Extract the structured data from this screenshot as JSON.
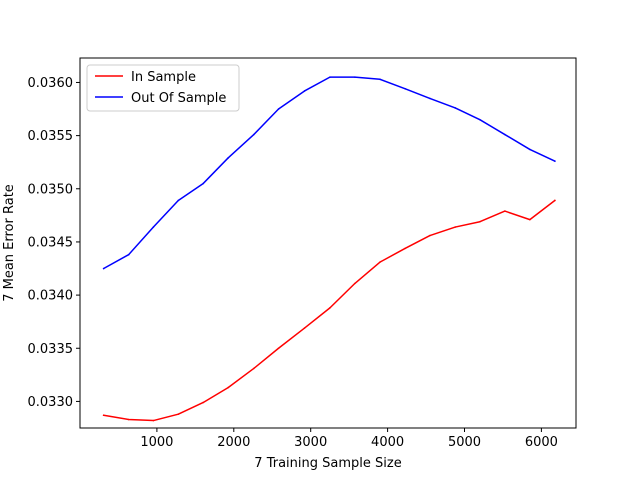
{
  "chart_data": {
    "type": "line",
    "xlabel": "7 Training Sample Size",
    "ylabel": "7 Mean Error Rate",
    "xlim": [
      0,
      6450
    ],
    "ylim": [
      0.03275,
      0.03623
    ],
    "xticks": [
      1000,
      2000,
      3000,
      4000,
      5000,
      6000
    ],
    "yticks": [
      0.033,
      0.0335,
      0.034,
      0.0345,
      0.035,
      0.0355,
      0.036
    ],
    "xtick_labels": [
      "1000",
      "2000",
      "3000",
      "4000",
      "5000",
      "6000"
    ],
    "ytick_labels": [
      "0.0330",
      "0.0335",
      "0.0340",
      "0.0345",
      "0.0350",
      "0.0355",
      "0.0360"
    ],
    "legend_position": "top-left",
    "x": [
      308,
      632,
      955,
      1278,
      1603,
      1926,
      2260,
      2582,
      2920,
      3250,
      3575,
      3900,
      4230,
      4550,
      4880,
      5200,
      5525,
      5850,
      6175
    ],
    "series": [
      {
        "name": "In Sample",
        "color": "#ff0000",
        "values": [
          0.03287,
          0.03283,
          0.03282,
          0.03288,
          0.03299,
          0.03313,
          0.03331,
          0.0335,
          0.03369,
          0.03388,
          0.03411,
          0.03431,
          0.03444,
          0.03456,
          0.03464,
          0.03469,
          0.03479,
          0.03471,
          0.03489
        ]
      },
      {
        "name": "Out Of Sample",
        "color": "#0000ff",
        "values": [
          0.03425,
          0.03438,
          0.03464,
          0.03489,
          0.03505,
          0.03529,
          0.03551,
          0.03575,
          0.03592,
          0.03605,
          0.03605,
          0.03603,
          0.03594,
          0.03585,
          0.03576,
          0.03565,
          0.03551,
          0.03537,
          0.03526
        ]
      }
    ]
  }
}
